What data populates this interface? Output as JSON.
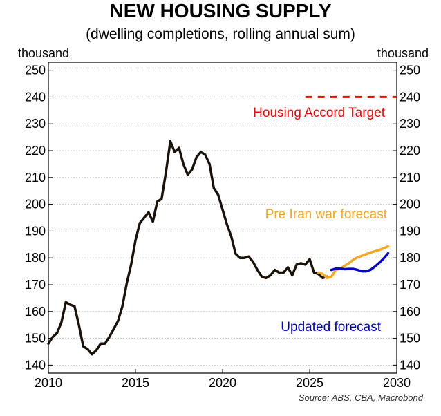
{
  "chart_data": {
    "type": "line",
    "title": "NEW HOUSING SUPPLY",
    "subtitle": "(dwelling completions, rolling annual sum)",
    "ylabel_left": "thousand",
    "ylabel_right": "thousand",
    "source": "Source: ABS, CBA, Macrobond",
    "xlim": [
      2010,
      2030
    ],
    "ylim": [
      137,
      253
    ],
    "x_ticks": [
      2010,
      2015,
      2020,
      2025,
      2030
    ],
    "y_ticks": [
      140,
      150,
      160,
      170,
      180,
      190,
      200,
      210,
      220,
      230,
      240,
      250
    ],
    "grid": "horizontal",
    "annotations": [
      {
        "text": "Housing Accord Target",
        "color": "#ff0000",
        "series": "accord"
      },
      {
        "text": "Pre Iran war forecast",
        "color": "#f5a623",
        "series": "pre_iran"
      },
      {
        "text": "Updated forecast",
        "color": "#0000cc",
        "series": "updated"
      }
    ],
    "series": [
      {
        "key": "actual",
        "color": "#1a1209",
        "dash": false,
        "x": [
          2010.0,
          2010.25,
          2010.5,
          2010.75,
          2011.0,
          2011.25,
          2011.5,
          2011.75,
          2012.0,
          2012.25,
          2012.5,
          2012.75,
          2013.0,
          2013.25,
          2013.5,
          2013.75,
          2014.0,
          2014.25,
          2014.5,
          2014.75,
          2015.0,
          2015.25,
          2015.5,
          2015.75,
          2016.0,
          2016.25,
          2016.5,
          2016.75,
          2017.0,
          2017.25,
          2017.5,
          2017.75,
          2018.0,
          2018.25,
          2018.5,
          2018.75,
          2019.0,
          2019.25,
          2019.5,
          2019.75,
          2020.0,
          2020.25,
          2020.5,
          2020.75,
          2021.0,
          2021.25,
          2021.5,
          2021.75,
          2022.0,
          2022.25,
          2022.5,
          2022.75,
          2023.0,
          2023.25,
          2023.5,
          2023.75,
          2024.0,
          2024.25,
          2024.5,
          2024.75,
          2025.0,
          2025.25,
          2025.5,
          2025.75,
          2026.0
        ],
        "values": [
          148,
          150.5,
          152,
          156,
          163.5,
          162.5,
          162,
          155,
          147,
          146,
          144,
          145.5,
          148,
          148,
          150.5,
          153.5,
          156.5,
          162,
          170.5,
          177.5,
          186.5,
          193,
          195,
          197,
          193.5,
          201,
          202,
          212,
          223.5,
          219.5,
          221,
          215,
          211,
          213,
          217.5,
          219.5,
          218.5,
          215,
          206,
          203.5,
          198,
          192.5,
          188,
          181.5,
          180,
          180,
          180.5,
          178.5,
          175.5,
          173,
          172.5,
          173.5,
          175.5,
          174.5,
          174.5,
          176.5,
          173.5,
          177.5,
          178,
          177.5,
          179.5,
          174.5,
          174,
          172.5,
          173
        ]
      },
      {
        "key": "pre_iran",
        "color": "#f5a623",
        "dash": false,
        "x": [
          2025.5,
          2025.75,
          2026.0,
          2026.25,
          2026.5,
          2026.75,
          2027.0,
          2027.25,
          2027.5,
          2027.75,
          2028.0,
          2028.25,
          2028.5,
          2028.75,
          2029.0,
          2029.25,
          2029.5
        ],
        "values": [
          174.5,
          174,
          172.5,
          173,
          175.5,
          176,
          177,
          178,
          179.3,
          180.2,
          180.8,
          181.4,
          182,
          182.5,
          183,
          183.6,
          184.3
        ]
      },
      {
        "key": "updated",
        "color": "#0000cc",
        "dash": false,
        "x": [
          2026.25,
          2026.5,
          2026.75,
          2027.0,
          2027.25,
          2027.5,
          2027.75,
          2028.0,
          2028.25,
          2028.5,
          2028.75,
          2029.0,
          2029.25,
          2029.5
        ],
        "values": [
          175.5,
          176,
          176,
          175.8,
          175.9,
          175.9,
          175.5,
          175,
          175,
          175.6,
          176.8,
          178.2,
          179.8,
          181.7
        ]
      },
      {
        "key": "accord",
        "color": "#ff0000",
        "dash": true,
        "x": [
          2024.75,
          2030.0
        ],
        "values": [
          240,
          240
        ]
      }
    ]
  }
}
